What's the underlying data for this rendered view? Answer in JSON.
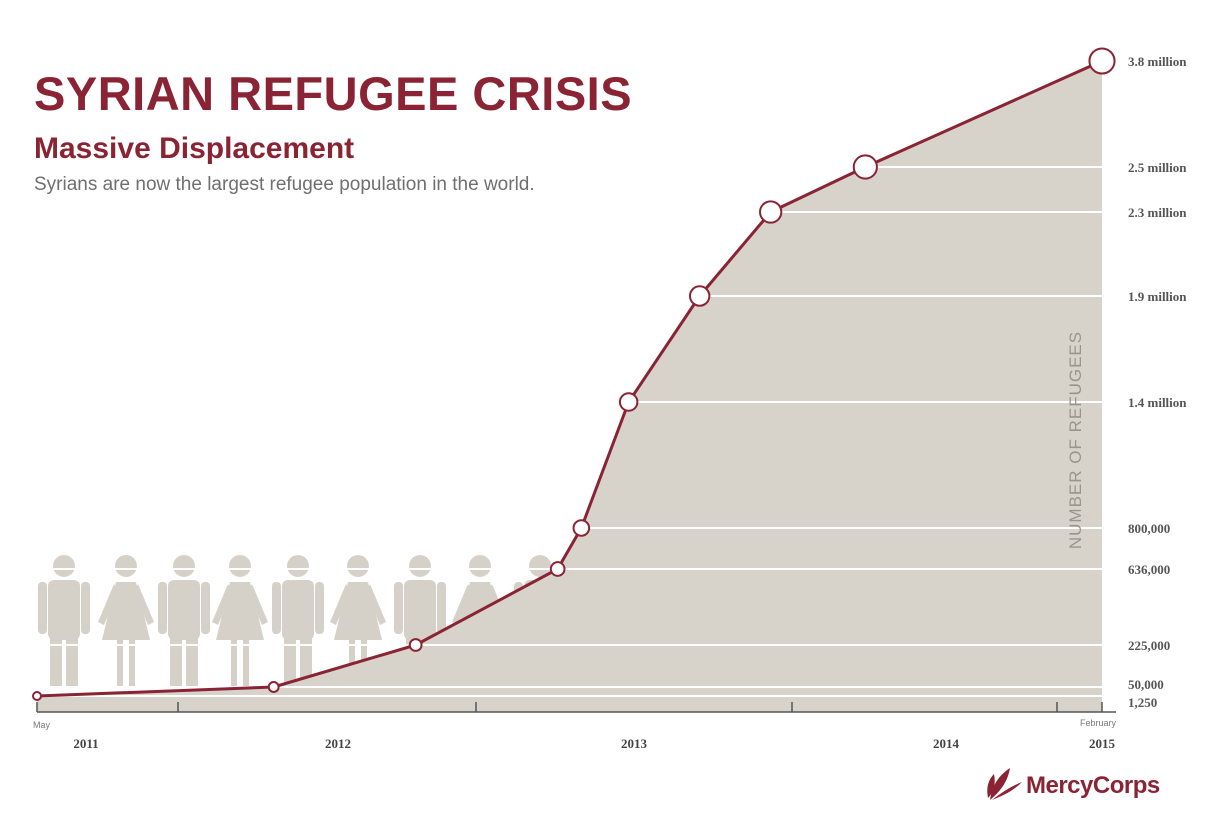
{
  "header": {
    "title": "SYRIAN REFUGEE CRISIS",
    "subtitle": "Massive Displacement",
    "tagline": "Syrians are now the largest refugee population in the world."
  },
  "brand": {
    "name": "MercyCorps",
    "logo_icon": "mercy-corps-leaf-icon"
  },
  "colors": {
    "accent": "#8a2434",
    "fill": "#d8d3ca",
    "figures": "#d6d1c8",
    "axis": "#555555",
    "text_gray": "#6f6f6f"
  },
  "chart_data": {
    "type": "area",
    "title": "SYRIAN REFUGEE CRISIS",
    "subtitle": "Massive Displacement",
    "ylabel": "NUMBER OF REFUGEES",
    "xlabel": "",
    "x_ticks": [
      "2011",
      "2012",
      "2013",
      "2014",
      "2015"
    ],
    "x_start_label": "May",
    "x_end_label": "February",
    "y_labels": [
      "1,250",
      "50,000",
      "225,000",
      "636,000",
      "800,000",
      "1.4 million",
      "1.9 million",
      "2.3 million",
      "2.5 million",
      "3.8 million"
    ],
    "series": [
      {
        "points": [
          {
            "date": "2011-05",
            "value": 1250
          },
          {
            "date": "2012-03",
            "value": 50000
          },
          {
            "date": "2012-09",
            "value": 225000
          },
          {
            "date": "2013-03",
            "value": 636000
          },
          {
            "date": "2013-04",
            "value": 800000
          },
          {
            "date": "2013-06",
            "value": 1400000
          },
          {
            "date": "2013-09",
            "value": 1900000
          },
          {
            "date": "2013-12",
            "value": 2300000
          },
          {
            "date": "2014-04",
            "value": 2500000
          },
          {
            "date": "2015-02",
            "value": 3800000
          }
        ]
      }
    ],
    "grid": true
  }
}
